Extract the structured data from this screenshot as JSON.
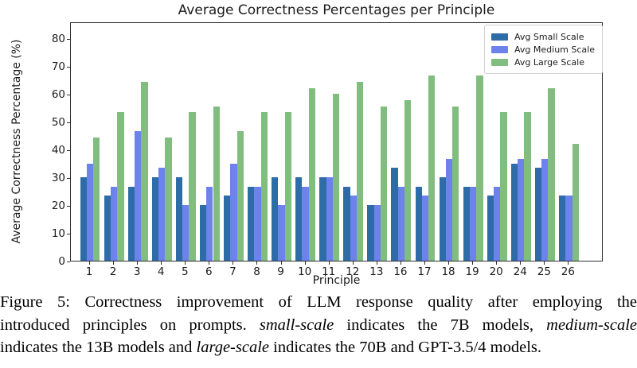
{
  "chart_data": {
    "type": "bar",
    "title": "Average Correctness Percentages per Principle",
    "xlabel": "Principle",
    "ylabel": "Average Correctness Percentage (%)",
    "ylim": [
      0,
      86
    ],
    "yticks": [
      0,
      10,
      20,
      30,
      40,
      50,
      60,
      70,
      80
    ],
    "grid": false,
    "legend_position": "upper right",
    "categories": [
      "1",
      "2",
      "3",
      "4",
      "5",
      "6",
      "7",
      "8",
      "9",
      "10",
      "11",
      "12",
      "13",
      "16",
      "17",
      "18",
      "19",
      "20",
      "24",
      "25",
      "26"
    ],
    "series": [
      {
        "name": "Avg Small Scale",
        "color": "#2e6ca7",
        "values": [
          30,
          23.33,
          26.67,
          30,
          30,
          20,
          23.33,
          26.67,
          30,
          30,
          30,
          26.67,
          20,
          33.33,
          26.67,
          30,
          26.67,
          23.33,
          35,
          33.33,
          23.33
        ]
      },
      {
        "name": "Avg Medium Scale",
        "color": "#6d82ec",
        "values": [
          35,
          26.67,
          46.67,
          33.33,
          20,
          26.67,
          35,
          26.67,
          20,
          26.67,
          30,
          23.33,
          20,
          26.67,
          23.33,
          36.67,
          26.67,
          26.67,
          36.67,
          36.67,
          23.33
        ]
      },
      {
        "name": "Avg Large Scale",
        "color": "#81bd7f",
        "values": [
          44.33,
          53.33,
          64.33,
          44.33,
          53.33,
          55.33,
          46.67,
          53.33,
          53.33,
          62,
          60,
          64.33,
          55.33,
          57.67,
          66.67,
          55.33,
          66.67,
          53.33,
          53.33,
          62,
          42
        ]
      }
    ]
  },
  "caption": {
    "lines": [
      [
        {
          "text": "Figure 5: Correctness improvement of LLM response quality after employing the",
          "italic": false
        }
      ],
      [
        {
          "text": "introduced principles on prompts. ",
          "italic": false
        },
        {
          "text": "small-scale",
          "italic": true
        },
        {
          "text": " indicates the 7B models, ",
          "italic": false
        },
        {
          "text": "medium-scale",
          "italic": true
        }
      ],
      [
        {
          "text": "indicates the 13B models and ",
          "italic": false
        },
        {
          "text": "large-scale",
          "italic": true
        },
        {
          "text": " indicates the 70B and GPT-3.5/4 models.",
          "italic": false
        }
      ]
    ]
  }
}
